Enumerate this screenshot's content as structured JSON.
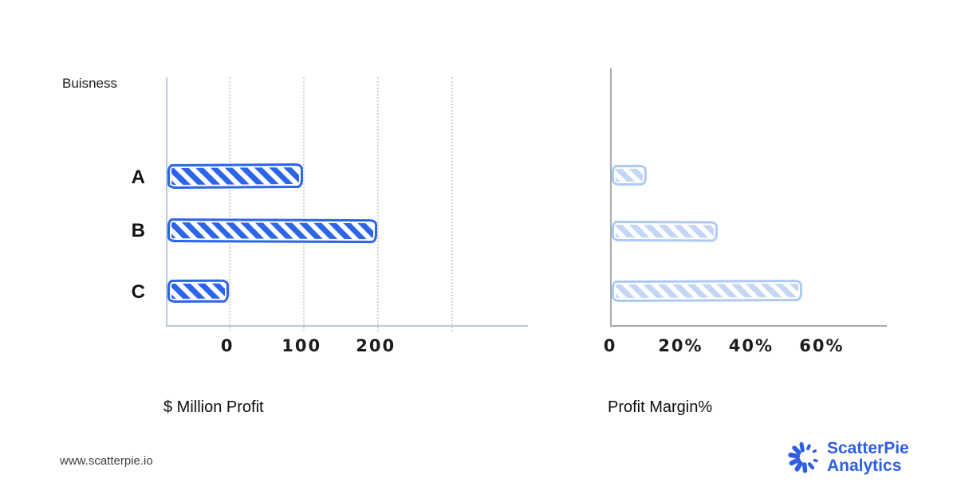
{
  "chart_data": [
    {
      "type": "bar",
      "orientation": "horizontal",
      "title": "$ Million Profit",
      "axis_top_label": "Buisness",
      "categories": [
        "A",
        "B",
        "C"
      ],
      "values": [
        100,
        200,
        0
      ],
      "units": "$ million",
      "x_ticks": [
        {
          "label": "0",
          "value": 0
        },
        {
          "label": "100",
          "value": 100
        },
        {
          "label": "200",
          "value": 200
        }
      ],
      "gridline_values": [
        0,
        100,
        200,
        300
      ],
      "xlim": [
        -83,
        403
      ],
      "bars_start_at_axis_left": true,
      "category_labels_shown": true,
      "grid": "dotted-vertical",
      "bar_color": "#2d65e8",
      "bar_border_color": "#2d65e8",
      "axis_color": "#b7ccd4",
      "hatch": "diagonal"
    },
    {
      "type": "bar",
      "orientation": "horizontal",
      "title": "Profit Margin%",
      "categories": [
        "A",
        "B",
        "C"
      ],
      "values": [
        10,
        30,
        54
      ],
      "units": "percent",
      "x_ticks": [
        {
          "label": "0",
          "value": 0
        },
        {
          "label": "20%",
          "value": 20
        },
        {
          "label": "40%",
          "value": 40
        },
        {
          "label": "60%",
          "value": 60
        }
      ],
      "gridline_values": [],
      "xlim": [
        0,
        78
      ],
      "bars_start_at_axis_left": true,
      "category_labels_shown": false,
      "grid": "none",
      "bar_color": "#c4d6f5",
      "bar_border_color": "#aecaf3",
      "axis_color": "#a6abb0",
      "hatch": "diagonal"
    }
  ],
  "footer": {
    "website": "www.scatterpie.io",
    "logo": {
      "line1": "ScatterPie",
      "line2": "Analytics",
      "color": "#2f5fe0"
    }
  }
}
